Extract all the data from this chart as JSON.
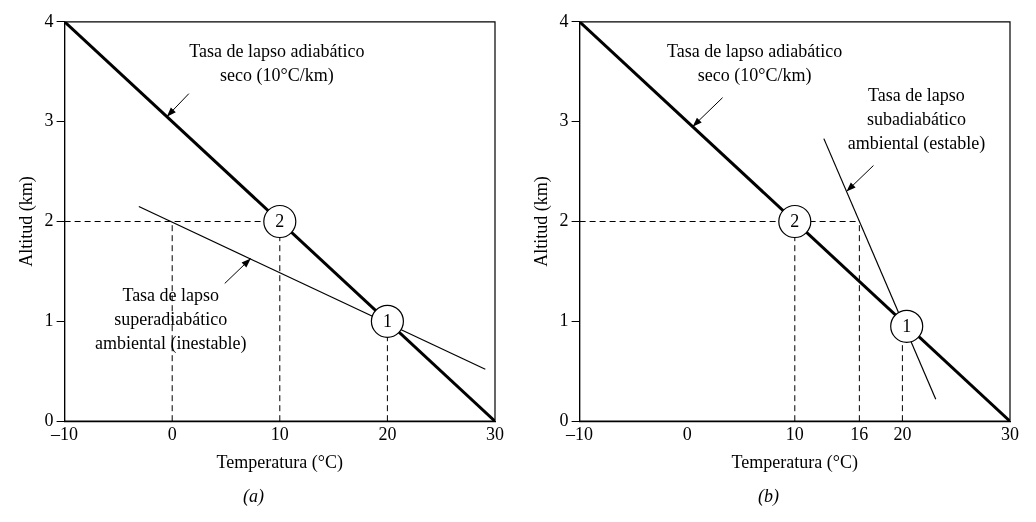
{
  "chart_data": [
    {
      "type": "line",
      "subtitle": "(a)",
      "xlabel": "Temperatura (°C)",
      "ylabel": "Altitud (km)",
      "xlim": [
        -10,
        30
      ],
      "ylim": [
        0,
        4
      ],
      "xticks": [
        {
          "value": -10,
          "label": "–10"
        },
        0,
        10,
        20,
        30
      ],
      "yticks": [
        0,
        1,
        2,
        3,
        4
      ],
      "grid": false,
      "legend": false,
      "series": [
        {
          "color": "#000000",
          "x": [
            -10,
            30
          ],
          "values": [
            4,
            0
          ],
          "line_style": "solid"
        },
        {
          "color": "#000000",
          "x": [
            -3.1,
            29.1
          ],
          "values": [
            2.15,
            0.52
          ],
          "line_style": "solid"
        },
        {
          "color": "#000000",
          "x": [
            -10,
            10
          ],
          "values": [
            2,
            2
          ],
          "line_style": "dashed"
        },
        {
          "color": "#000000",
          "x": [
            0,
            0
          ],
          "values": [
            0,
            2
          ],
          "line_style": "dashed"
        },
        {
          "color": "#000000",
          "x": [
            10,
            10
          ],
          "values": [
            0,
            2
          ],
          "line_style": "dashed"
        },
        {
          "color": "#000000",
          "x": [
            20,
            20
          ],
          "values": [
            0,
            1
          ],
          "line_style": "dashed"
        }
      ],
      "annotations": [
        {
          "text": "Tasa de lapso adiabático\nseco (10°C/km)",
          "x": -0.5,
          "y": 3.05
        },
        {
          "text": "Tasa de lapso\nsuperadiabático\nambiental (inestable)",
          "x": 7.3,
          "y": 1.63
        },
        {
          "text": "2",
          "x": 10,
          "y": 2
        },
        {
          "text": "1",
          "x": 20,
          "y": 1
        }
      ]
    },
    {
      "type": "line",
      "subtitle": "(b)",
      "xlabel": "Temperatura (°C)",
      "ylabel": "Altitud (km)",
      "xlim": [
        -10,
        30
      ],
      "ylim": [
        0,
        4
      ],
      "xticks": [
        {
          "value": -10,
          "label": "–10"
        },
        0,
        10,
        16,
        20,
        30
      ],
      "yticks": [
        0,
        1,
        2,
        3,
        4
      ],
      "grid": false,
      "legend": false,
      "series": [
        {
          "color": "#000000",
          "x": [
            -10,
            30
          ],
          "values": [
            4,
            0
          ],
          "line_style": "solid"
        },
        {
          "color": "#000000",
          "x": [
            12.7,
            23.1
          ],
          "values": [
            2.83,
            0.22
          ],
          "line_style": "solid"
        },
        {
          "color": "#000000",
          "x": [
            -10,
            16
          ],
          "values": [
            2,
            2
          ],
          "line_style": "dashed"
        },
        {
          "color": "#000000",
          "x": [
            10,
            10
          ],
          "values": [
            0,
            2
          ],
          "line_style": "dashed"
        },
        {
          "color": "#000000",
          "x": [
            16,
            16
          ],
          "values": [
            0,
            2
          ],
          "line_style": "dashed"
        },
        {
          "color": "#000000",
          "x": [
            20,
            20
          ],
          "values": [
            0,
            1
          ],
          "line_style": "dashed"
        }
      ],
      "annotations": [
        {
          "text": "Tasa de lapso adiabático\nseco (10°C/km)",
          "x": 0.5,
          "y": 2.95
        },
        {
          "text": "Tasa de lapso\nsubadiabático\nambiental (estable)",
          "x": 14.8,
          "y": 2.3
        },
        {
          "text": "2",
          "x": 10,
          "y": 2
        },
        {
          "text": "1",
          "x": 20.4,
          "y": 0.95
        }
      ]
    }
  ]
}
